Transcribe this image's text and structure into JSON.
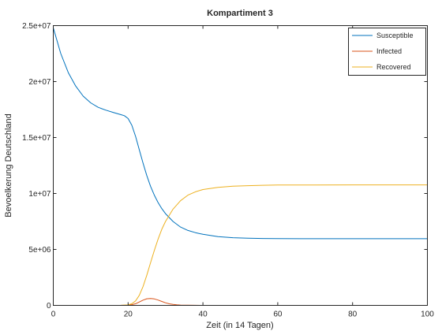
{
  "chart_data": {
    "type": "line",
    "title": "Kompartiment 3",
    "xlabel": "Zeit (in 14 Tagen)",
    "ylabel": "Bevoelkerung Deutschland",
    "xlim": [
      0,
      100
    ],
    "ylim": [
      0,
      25000000
    ],
    "x_ticks": [
      0,
      20,
      40,
      60,
      80,
      100
    ],
    "x_tick_labels": [
      "0",
      "20",
      "40",
      "60",
      "80",
      "100"
    ],
    "y_ticks": [
      0,
      5000000,
      10000000,
      15000000,
      20000000,
      25000000
    ],
    "y_tick_labels": [
      "0",
      "5e+06",
      "1e+07",
      "1.5e+07",
      "2e+07",
      "2.5e+07"
    ],
    "grid": false,
    "legend_position": "top-right",
    "series": [
      {
        "name": "Susceptible",
        "color": "#0072BD",
        "x": [
          0,
          2,
          4,
          6,
          8,
          10,
          12,
          14,
          16,
          18,
          19,
          20,
          21,
          22,
          23,
          24,
          25,
          26,
          27,
          28,
          29,
          30,
          32,
          34,
          36,
          38,
          40,
          44,
          48,
          52,
          56,
          60,
          70,
          80,
          90,
          100
        ],
        "y": [
          24800000,
          22500000,
          20800000,
          19600000,
          18700000,
          18100000,
          17700000,
          17450000,
          17250000,
          17050000,
          16950000,
          16700000,
          16100000,
          15100000,
          13900000,
          12700000,
          11600000,
          10650000,
          9850000,
          9200000,
          8650000,
          8200000,
          7500000,
          7000000,
          6700000,
          6500000,
          6350000,
          6150000,
          6050000,
          6000000,
          5980000,
          5970000,
          5960000,
          5960000,
          5960000,
          5960000
        ]
      },
      {
        "name": "Infected",
        "color": "#D95319",
        "x": [
          15,
          18,
          20,
          21,
          22,
          23,
          24,
          25,
          26,
          27,
          28,
          29,
          30,
          31,
          32,
          33,
          34,
          36,
          38,
          40,
          42
        ],
        "y": [
          0,
          2000,
          20000,
          60000,
          150000,
          300000,
          470000,
          590000,
          620000,
          580000,
          480000,
          350000,
          230000,
          140000,
          85000,
          50000,
          30000,
          12000,
          5000,
          2000,
          0
        ]
      },
      {
        "name": "Recovered",
        "color": "#EDB120",
        "x": [
          15,
          18,
          20,
          21,
          22,
          23,
          24,
          25,
          26,
          27,
          28,
          29,
          30,
          32,
          34,
          36,
          38,
          40,
          44,
          48,
          52,
          56,
          60,
          70,
          80,
          90,
          100
        ],
        "y": [
          0,
          5000,
          40000,
          150000,
          400000,
          900000,
          1700000,
          2700000,
          3800000,
          4900000,
          5900000,
          6800000,
          7500000,
          8600000,
          9350000,
          9850000,
          10150000,
          10350000,
          10550000,
          10650000,
          10700000,
          10730000,
          10750000,
          10760000,
          10770000,
          10770000,
          10770000
        ]
      }
    ]
  }
}
